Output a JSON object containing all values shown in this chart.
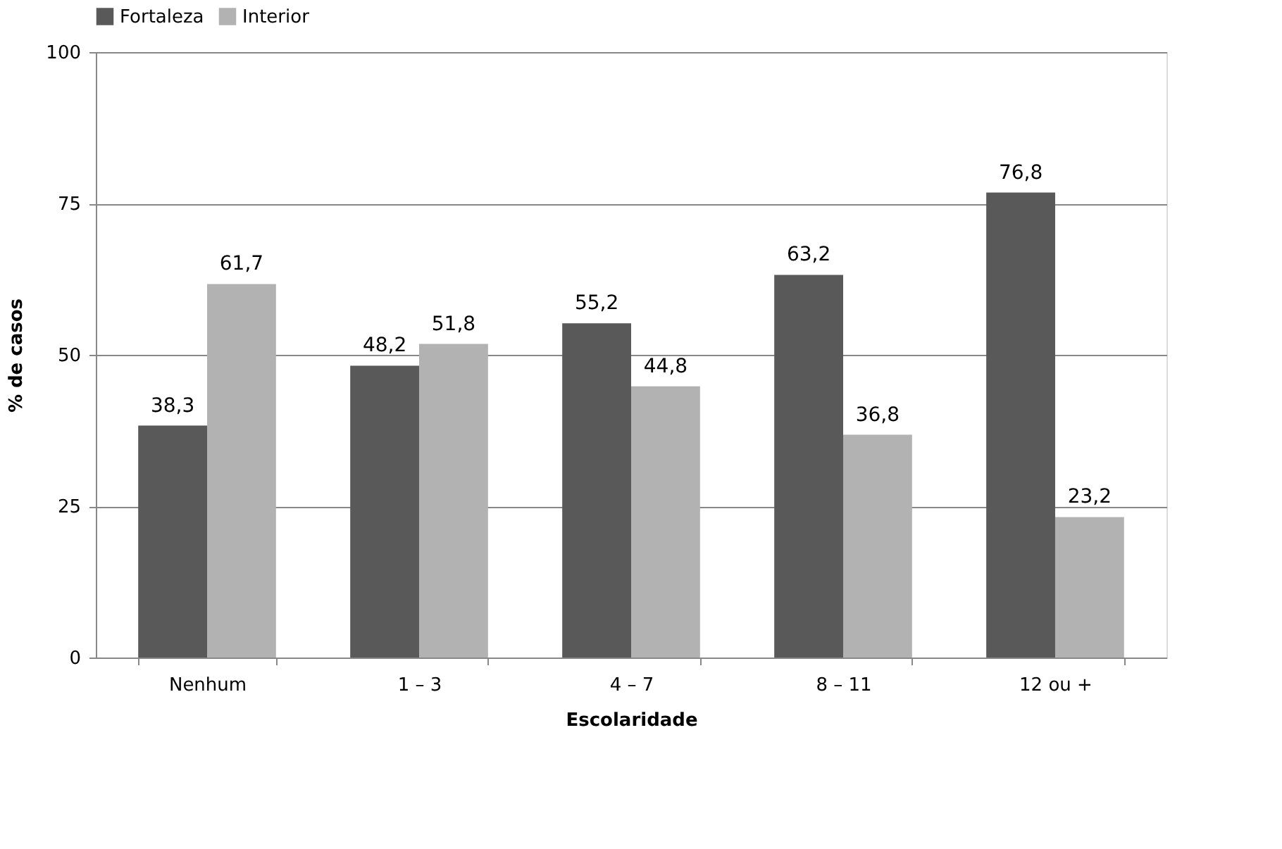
{
  "chart_data": {
    "type": "bar",
    "xlabel": "Escolaridade",
    "ylabel": "% de casos",
    "categories": [
      "Nenhum",
      "1 – 3",
      "4 – 7",
      "8 – 11",
      "12 ou +"
    ],
    "series": [
      {
        "name": "Fortaleza",
        "color": "#595959",
        "values": [
          38.3,
          48.2,
          55.2,
          63.2,
          76.8
        ],
        "value_labels": [
          "38,3",
          "48,2",
          "55,2",
          "63,2",
          "76,8"
        ]
      },
      {
        "name": "Interior",
        "color": "#b2b2b2",
        "values": [
          61.7,
          51.8,
          44.8,
          36.8,
          23.2
        ],
        "value_labels": [
          "61,7",
          "51,8",
          "44,8",
          "36,8",
          "23,2"
        ]
      }
    ],
    "ylim": [
      0,
      100
    ],
    "yticks": [
      0,
      25,
      50,
      75,
      100
    ],
    "grid": "y",
    "legend": "top"
  }
}
